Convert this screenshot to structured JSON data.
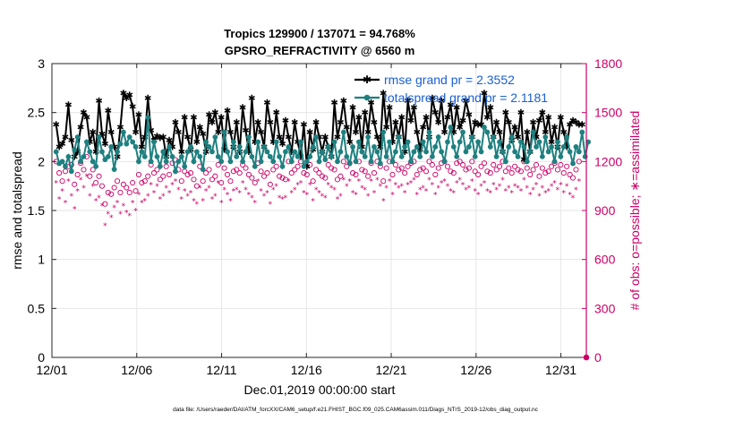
{
  "chart_data": {
    "type": "line",
    "title": "Tropics 129900 / 137071 = 94.768%",
    "subtitle": "GPSRO_REFRACTIVITY @ 6560 m",
    "xlabel": "Dec.01,2019 00:00:00 start",
    "ylabel": "rmse and totalspread",
    "ylabel_right": "# of obs: o=possible; ∗=assimilated",
    "footnote": "data file: /Users/raeder/DAI/ATM_forcXX/CAM6_setup/f.e21.FHIST_BGC.f09_025.CAM6assim.011/Diags_NTrS_2019-12/obs_diag_output.nc",
    "xlim": [
      0,
      31.5
    ],
    "ylim": [
      0,
      3
    ],
    "ylim_right": [
      0,
      1800
    ],
    "x_ticks": [
      0,
      5,
      10,
      15,
      20,
      25,
      30
    ],
    "x_tick_labels": [
      "12/01",
      "12/06",
      "12/11",
      "12/16",
      "12/21",
      "12/26",
      "12/31"
    ],
    "y_ticks": [
      0,
      0.5,
      1,
      1.5,
      2,
      2.5,
      3
    ],
    "y_tick_labels": [
      "0",
      "0.5",
      "1",
      "1.5",
      "2",
      "2.5",
      "3"
    ],
    "y_ticks_right": [
      0,
      300,
      600,
      900,
      1200,
      1500,
      1800
    ],
    "y_tick_labels_right": [
      "0",
      "300",
      "600",
      "900",
      "1200",
      "1500",
      "1800"
    ],
    "legend": [
      {
        "name": "rmse grand pr = 2.3552",
        "color": "#000000",
        "marker": "star"
      },
      {
        "name": "totalspread grand pr = 2.1181",
        "color": "#1f8080",
        "marker": "circle"
      }
    ],
    "legend_text_color": "#1a5fd6",
    "colors": {
      "rmse": "#000000",
      "spread": "#1f8080",
      "obs": "#cc0066",
      "grid": "#e6e6e6"
    },
    "series": [
      {
        "name": "rmse",
        "axis": "left",
        "values": [
          2.38,
          2.15,
          2.18,
          2.25,
          2.58,
          2.22,
          2.05,
          2.1,
          2.35,
          2.5,
          2.45,
          2.2,
          2.3,
          2.1,
          2.62,
          2.28,
          2.18,
          2.52,
          2.3,
          2.15,
          2.05,
          2.35,
          2.7,
          2.65,
          2.68,
          2.56,
          2.3,
          2.48,
          2.15,
          2.25,
          2.65,
          2.32,
          2.22,
          2.26,
          2.24,
          2.25,
          2.05,
          2.22,
          2.15,
          2.4,
          2.3,
          2.1,
          2.45,
          2.25,
          2.12,
          2.45,
          2.2,
          2.35,
          2.28,
          2.1,
          2.48,
          2.4,
          2.5,
          2.3,
          2.45,
          2.12,
          2.52,
          2.3,
          2.15,
          2.4,
          2.1,
          2.55,
          2.32,
          2.1,
          2.65,
          2.2,
          2.4,
          2.3,
          2.15,
          2.6,
          2.4,
          2.2,
          2.5,
          2.25,
          2.18,
          2.42,
          2.25,
          2.1,
          2.4,
          2.2,
          2.05,
          2.38,
          1.95,
          2.3,
          2.12,
          2.4,
          2.25,
          2.1,
          2.25,
          2.15,
          2.05,
          2.6,
          2.25,
          2.4,
          2.62,
          2.35,
          2.2,
          2.55,
          2.3,
          2.45,
          2.15,
          2.5,
          2.3,
          2.6,
          2.4,
          2.25,
          2.15,
          2.7,
          2.35,
          2.55,
          2.2,
          2.4,
          2.25,
          2.45,
          2.1,
          2.62,
          2.42,
          2.55,
          2.3,
          2.12,
          2.35,
          2.45,
          2.25,
          2.65,
          2.5,
          2.4,
          2.62,
          2.3,
          2.45,
          2.58,
          2.3,
          2.55,
          2.35,
          2.42,
          2.62,
          2.48,
          2.25,
          2.4,
          2.38,
          2.38,
          2.7,
          2.45,
          2.55,
          2.25,
          2.4,
          2.3,
          2.1,
          2.5,
          2.4,
          2.22,
          2.35,
          2.25,
          2.5,
          2.02,
          2.3,
          2.1,
          2.4,
          2.25,
          2.42,
          2.5,
          2.3,
          2.45,
          2.2,
          2.35,
          2.15,
          2.45,
          2.3,
          2.15,
          2.38,
          2.42,
          2.4,
          2.38,
          2.38
        ]
      },
      {
        "name": "totalspread",
        "axis": "left",
        "values": [
          2.1,
          1.98,
          2.0,
          1.95,
          2.05,
          1.9,
          2.12,
          2.25,
          2.0,
          2.05,
          2.2,
          2.1,
          2.0,
          1.95,
          2.25,
          2.1,
          2.02,
          2.05,
          2.15,
          1.92,
          2.1,
          2.18,
          2.3,
          2.18,
          2.25,
          2.2,
          2.15,
          2.0,
          2.1,
          2.05,
          2.45,
          2.0,
          2.2,
          2.05,
          1.95,
          2.1,
          2.0,
          2.15,
          2.05,
          1.9,
          2.0,
          2.05,
          1.95,
          2.1,
          2.15,
          2.0,
          2.1,
          2.05,
          1.92,
          2.2,
          2.15,
          2.1,
          2.25,
          2.05,
          2.0,
          2.3,
          2.1,
          2.0,
          2.2,
          2.05,
          2.15,
          2.0,
          2.1,
          2.25,
          2.05,
          1.95,
          2.2,
          2.0,
          2.15,
          2.1,
          2.05,
          2.0,
          2.2,
          2.05,
          1.95,
          2.1,
          2.15,
          2.0,
          2.1,
          2.05,
          2.2,
          1.95,
          2.0,
          2.05,
          2.15,
          2.25,
          2.0,
          2.1,
          2.02,
          2.15,
          2.05,
          2.2,
          2.0,
          2.1,
          2.3,
          2.05,
          1.98,
          2.15,
          2.0,
          2.2,
          2.1,
          2.05,
          2.25,
          2.0,
          2.15,
          2.1,
          1.98,
          2.3,
          2.05,
          2.2,
          2.0,
          2.1,
          2.25,
          2.05,
          2.15,
          2.2,
          2.0,
          2.1,
          2.15,
          2.05,
          2.2,
          2.1,
          2.3,
          2.05,
          2.15,
          2.25,
          2.1,
          2.0,
          2.2,
          2.35,
          2.15,
          2.05,
          2.2,
          2.3,
          2.1,
          2.15,
          2.25,
          2.05,
          2.2,
          2.1,
          2.35,
          2.3,
          2.15,
          2.25,
          2.05,
          2.2,
          2.1,
          2.0,
          2.15,
          2.25,
          2.1,
          2.05,
          2.2,
          2.15,
          2.0,
          2.1,
          2.3,
          2.15,
          2.2,
          2.05,
          2.25,
          2.1,
          2.15,
          2.0,
          2.2,
          2.05,
          2.15,
          2.25,
          2.1,
          1.98,
          2.15,
          2.1,
          2.3,
          2.05,
          2.2
        ]
      },
      {
        "name": "obs possible",
        "axis": "right",
        "values": [
          1200,
          1130,
          1080,
          1140,
          1170,
          1180,
          1060,
          1120,
          1190,
          1150,
          1230,
          1110,
          1150,
          1070,
          1110,
          1050,
          940,
          1010,
          1000,
          1040,
          1080,
          1010,
          1060,
          1040,
          1010,
          1070,
          1020,
          1120,
          1070,
          1080,
          1110,
          1180,
          1130,
          1150,
          1090,
          1110,
          1170,
          1120,
          1190,
          1210,
          1150,
          1080,
          1140,
          1120,
          1130,
          1090,
          1050,
          1170,
          1080,
          1130,
          1150,
          1090,
          1110,
          1180,
          1070,
          1160,
          1120,
          1080,
          1140,
          1150,
          1130,
          1180,
          1160,
          1120,
          1100,
          1070,
          1190,
          1140,
          1110,
          1130,
          1060,
          1150,
          1170,
          1110,
          1100,
          1090,
          1200,
          1130,
          1150,
          1170,
          1200,
          1130,
          1120,
          1180,
          1080,
          1150,
          1130,
          1110,
          1100,
          1180,
          1160,
          1150,
          1090,
          1110,
          1200,
          1170,
          1190,
          1130,
          1120,
          1200,
          1150,
          1140,
          1110,
          1190,
          1130,
          1200,
          1170,
          1080,
          1160,
          1200,
          1120,
          1180,
          1150,
          1160,
          1130,
          1170,
          1190,
          1200,
          1120,
          1150,
          1160,
          1140,
          1200,
          1180,
          1120,
          1160,
          1190,
          1200,
          1170,
          1140,
          1130,
          1190,
          1200,
          1180,
          1150,
          1160,
          1200,
          1140,
          1120,
          1170,
          1190,
          1140,
          1130,
          1180,
          1150,
          1170,
          1200,
          1140,
          1160,
          1130,
          1170,
          1150,
          1140,
          1200,
          1160,
          1120,
          1150,
          1180,
          1110,
          1160,
          1130,
          1140,
          1170,
          1190,
          1150,
          1180,
          1130,
          1170,
          1120,
          1100,
          1150,
          1200
        ]
      },
      {
        "name": "obs assimilated",
        "axis": "right",
        "values": [
          1070,
          970,
          1020,
          950,
          1080,
          990,
          910,
          1020,
          1090,
          1040,
          1110,
          990,
          1050,
          960,
          980,
          930,
          810,
          880,
          860,
          920,
          950,
          880,
          930,
          890,
          870,
          950,
          900,
          1000,
          950,
          960,
          990,
          1060,
          1010,
          1050,
          970,
          990,
          1040,
          1010,
          1060,
          1080,
          1030,
          970,
          1020,
          990,
          1010,
          960,
          940,
          1040,
          960,
          1020,
          1040,
          970,
          990,
          1070,
          950,
          1030,
          1000,
          960,
          1020,
          1030,
          1010,
          1070,
          1030,
          1000,
          980,
          950,
          1080,
          1020,
          990,
          1010,
          940,
          1030,
          1050,
          980,
          970,
          980,
          1080,
          1010,
          1030,
          1060,
          1070,
          1010,
          1000,
          1060,
          960,
          1030,
          1010,
          990,
          980,
          1060,
          1040,
          1030,
          970,
          990,
          1090,
          1050,
          1080,
          1010,
          1000,
          1080,
          1040,
          1030,
          990,
          1080,
          1010,
          1090,
          1050,
          960,
          1040,
          1080,
          1000,
          1060,
          1040,
          1050,
          1010,
          1060,
          1070,
          1090,
          1000,
          1030,
          1040,
          1020,
          1090,
          1060,
          1000,
          1040,
          1070,
          1080,
          1050,
          1020,
          1010,
          1070,
          1090,
          1060,
          1030,
          1040,
          1080,
          1020,
          1000,
          1050,
          1070,
          1020,
          1010,
          1060,
          1030,
          1050,
          1090,
          1020,
          1040,
          1010,
          1050,
          1040,
          1020,
          1090,
          1040,
          1000,
          1030,
          1060,
          990,
          1040,
          1010,
          1020,
          1050,
          1070,
          1030,
          1060,
          1010,
          1050,
          1000,
          980,
          1030,
          1080
        ]
      }
    ]
  }
}
